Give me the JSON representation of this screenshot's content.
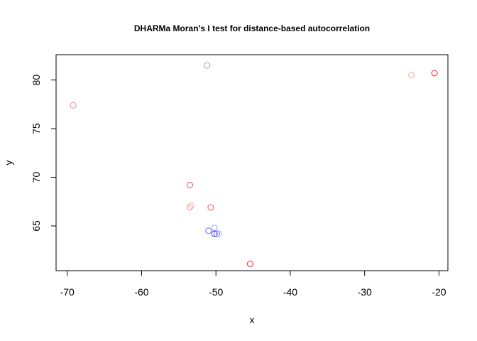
{
  "chart_data": {
    "type": "scatter",
    "title": "DHARMa Moran's I test for distance-based autocorrelation",
    "xlabel": "x",
    "ylabel": "y",
    "xlim": [
      -71.5,
      -18.8
    ],
    "ylim": [
      60.4,
      82.6
    ],
    "xticks": [
      -70,
      -60,
      -50,
      -40,
      -30,
      -20
    ],
    "yticks": [
      65,
      70,
      75,
      80
    ],
    "grid": false,
    "legend": "none",
    "points": [
      {
        "x": -69.2,
        "y": 77.4,
        "color": "#ff8a8a"
      },
      {
        "x": -51.2,
        "y": 81.5,
        "color": "#9a9aff"
      },
      {
        "x": -23.7,
        "y": 80.5,
        "color": "#ffa0a0"
      },
      {
        "x": -20.6,
        "y": 80.7,
        "color": "#ff2020"
      },
      {
        "x": -53.5,
        "y": 69.2,
        "color": "#ff4444"
      },
      {
        "x": -53.5,
        "y": 66.9,
        "color": "#ff8080"
      },
      {
        "x": -53.3,
        "y": 67.1,
        "color": "#ffb0b0"
      },
      {
        "x": -50.7,
        "y": 66.9,
        "color": "#ff5050"
      },
      {
        "x": -51.0,
        "y": 64.5,
        "color": "#6a6aff"
      },
      {
        "x": -50.2,
        "y": 64.8,
        "color": "#a0a0ff"
      },
      {
        "x": -50.2,
        "y": 64.2,
        "color": "#3030ff"
      },
      {
        "x": -49.9,
        "y": 64.2,
        "color": "#5050ff"
      },
      {
        "x": -49.6,
        "y": 64.2,
        "color": "#b0b0ff"
      },
      {
        "x": -45.4,
        "y": 61.1,
        "color": "#ff2020"
      }
    ]
  }
}
